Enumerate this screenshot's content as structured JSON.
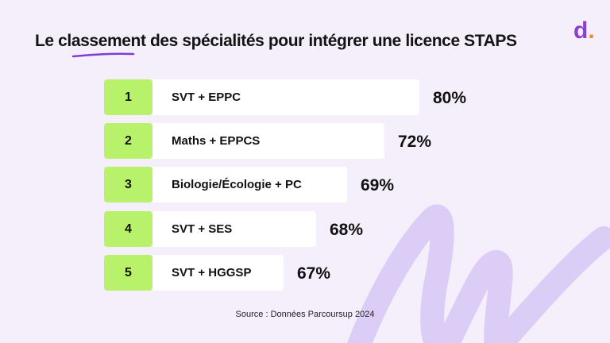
{
  "chart_data": {
    "type": "bar",
    "title": "Le classement des spécialités pour intégrer une licence STAPS",
    "categories": [
      "SVT + EPPC",
      "Maths + EPPCS",
      "Biologie/Écologie + PC",
      "SVT + SES",
      "SVT + HGGSP"
    ],
    "ranks": [
      "1",
      "2",
      "3",
      "4",
      "5"
    ],
    "values": [
      80,
      72,
      69,
      68,
      67
    ],
    "value_labels": [
      "80%",
      "72%",
      "69%",
      "68%",
      "67%"
    ],
    "orientation": "horizontal",
    "source": "Source : Données Parcoursup 2024",
    "colors": {
      "rank_box": "#b8f26a",
      "bar": "#ffffff",
      "background": "#f4effb",
      "accent": "#8a3fd1"
    }
  },
  "logo": {
    "text": "d",
    "dot": "."
  }
}
